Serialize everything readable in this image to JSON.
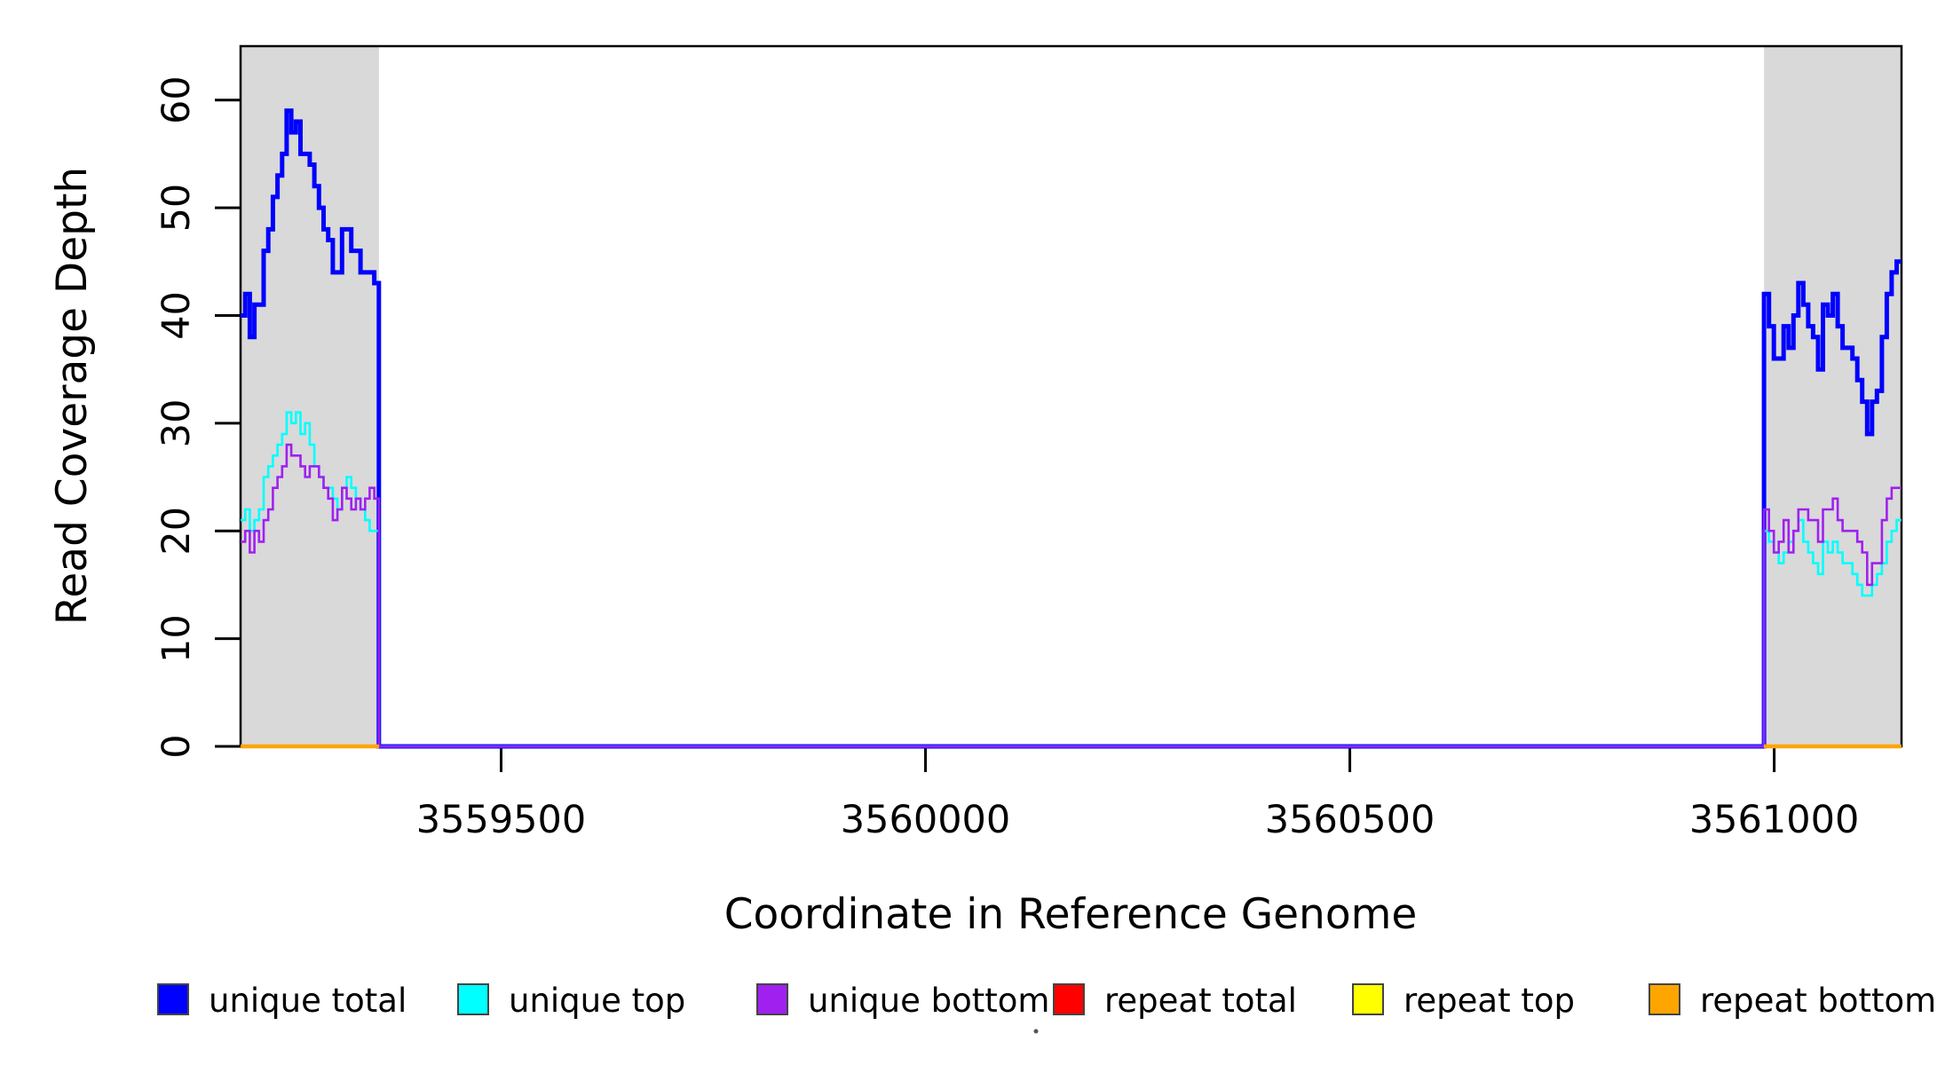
{
  "chart_data": {
    "type": "line",
    "subtype": "step-coverage",
    "title": "",
    "xlabel": "Coordinate in Reference Genome",
    "ylabel": "Read Coverage Depth",
    "xlim": [
      3559193,
      3561150
    ],
    "ylim": [
      0,
      65
    ],
    "xticks": [
      3559500,
      3560000,
      3560500,
      3561000
    ],
    "yticks": [
      0,
      10,
      20,
      30,
      40,
      50,
      60
    ],
    "grid": false,
    "legend_position": "bottom",
    "shaded_regions": [
      {
        "x0": 3559193,
        "x1": 3559356,
        "color": "#d9d9d9"
      },
      {
        "x0": 3560988,
        "x1": 3561150,
        "color": "#d9d9d9"
      }
    ],
    "series": [
      {
        "name": "unique total",
        "color": "#0000FF",
        "line_width": 5,
        "segments": [
          {
            "type": "steps",
            "x0": 3559193,
            "x1": 3559356,
            "values": [
              40,
              42,
              38,
              41,
              41,
              46,
              48,
              51,
              53,
              55,
              59,
              57,
              58,
              55,
              55,
              54,
              52,
              50,
              48,
              47,
              44,
              44,
              48,
              48,
              46,
              46,
              44,
              44,
              44,
              43
            ]
          },
          {
            "type": "flat",
            "x0": 3559356,
            "x1": 3560988,
            "value": 0
          },
          {
            "type": "steps",
            "x0": 3560988,
            "x1": 3561150,
            "values": [
              42,
              39,
              36,
              36,
              39,
              37,
              40,
              43,
              41,
              39,
              38,
              35,
              41,
              40,
              42,
              39,
              37,
              37,
              36,
              34,
              32,
              29,
              32,
              33,
              38,
              42,
              44,
              45
            ]
          }
        ]
      },
      {
        "name": "unique top",
        "color": "#00FFFF",
        "line_width": 2.6,
        "segments": [
          {
            "type": "steps",
            "x0": 3559193,
            "x1": 3559356,
            "values": [
              21,
              22,
              20,
              21,
              22,
              25,
              26,
              27,
              28,
              29,
              31,
              30,
              31,
              29,
              30,
              28,
              26,
              25,
              24,
              24,
              23,
              22,
              24,
              25,
              24,
              23,
              22,
              21,
              20,
              20
            ]
          },
          {
            "type": "flat",
            "x0": 3559356,
            "x1": 3560988,
            "value": 0
          },
          {
            "type": "steps",
            "x0": 3560988,
            "x1": 3561150,
            "values": [
              20,
              19,
              18,
              17,
              18,
              19,
              20,
              21,
              19,
              18,
              17,
              16,
              19,
              18,
              19,
              18,
              17,
              17,
              16,
              15,
              14,
              14,
              15,
              16,
              17,
              19,
              20,
              21
            ]
          }
        ]
      },
      {
        "name": "unique bottom",
        "color": "#A020F0",
        "line_width": 2.6,
        "segments": [
          {
            "type": "steps",
            "x0": 3559193,
            "x1": 3559356,
            "values": [
              19,
              20,
              18,
              20,
              19,
              21,
              22,
              24,
              25,
              26,
              28,
              27,
              27,
              26,
              25,
              26,
              26,
              25,
              24,
              23,
              21,
              22,
              24,
              23,
              22,
              23,
              22,
              23,
              24,
              23
            ]
          },
          {
            "type": "flat",
            "x0": 3559356,
            "x1": 3560988,
            "value": 0
          },
          {
            "type": "steps",
            "x0": 3560988,
            "x1": 3561150,
            "values": [
              22,
              20,
              18,
              19,
              21,
              18,
              20,
              22,
              22,
              21,
              21,
              19,
              22,
              22,
              23,
              21,
              20,
              20,
              20,
              19,
              18,
              15,
              17,
              17,
              21,
              23,
              24,
              24
            ]
          }
        ]
      },
      {
        "name": "repeat total",
        "color": "#FF0000",
        "line_width": 2.6,
        "segments": [
          {
            "type": "flat",
            "x0": 3559193,
            "x1": 3559356,
            "value": 0
          },
          {
            "type": "flat",
            "x0": 3560988,
            "x1": 3561150,
            "value": 0
          }
        ]
      },
      {
        "name": "repeat top",
        "color": "#FFFF00",
        "line_width": 2.6,
        "segments": [
          {
            "type": "flat",
            "x0": 3559193,
            "x1": 3559356,
            "value": 0
          },
          {
            "type": "flat",
            "x0": 3560988,
            "x1": 3561150,
            "value": 0
          }
        ]
      },
      {
        "name": "repeat bottom",
        "color": "#FFA500",
        "line_width": 4.5,
        "segments": [
          {
            "type": "flat",
            "x0": 3559193,
            "x1": 3559356,
            "value": 0
          },
          {
            "type": "flat",
            "x0": 3560988,
            "x1": 3561150,
            "value": 0
          }
        ]
      }
    ]
  },
  "legend": {
    "items": [
      {
        "label": "unique total",
        "color": "#0000FF"
      },
      {
        "label": "unique top",
        "color": "#00FFFF"
      },
      {
        "label": "unique bottom",
        "color": "#A020F0"
      },
      {
        "label": "repeat total",
        "color": "#FF0000"
      },
      {
        "label": "repeat top",
        "color": "#FFFF00"
      },
      {
        "label": "repeat bottom",
        "color": "#FFA500"
      }
    ]
  }
}
